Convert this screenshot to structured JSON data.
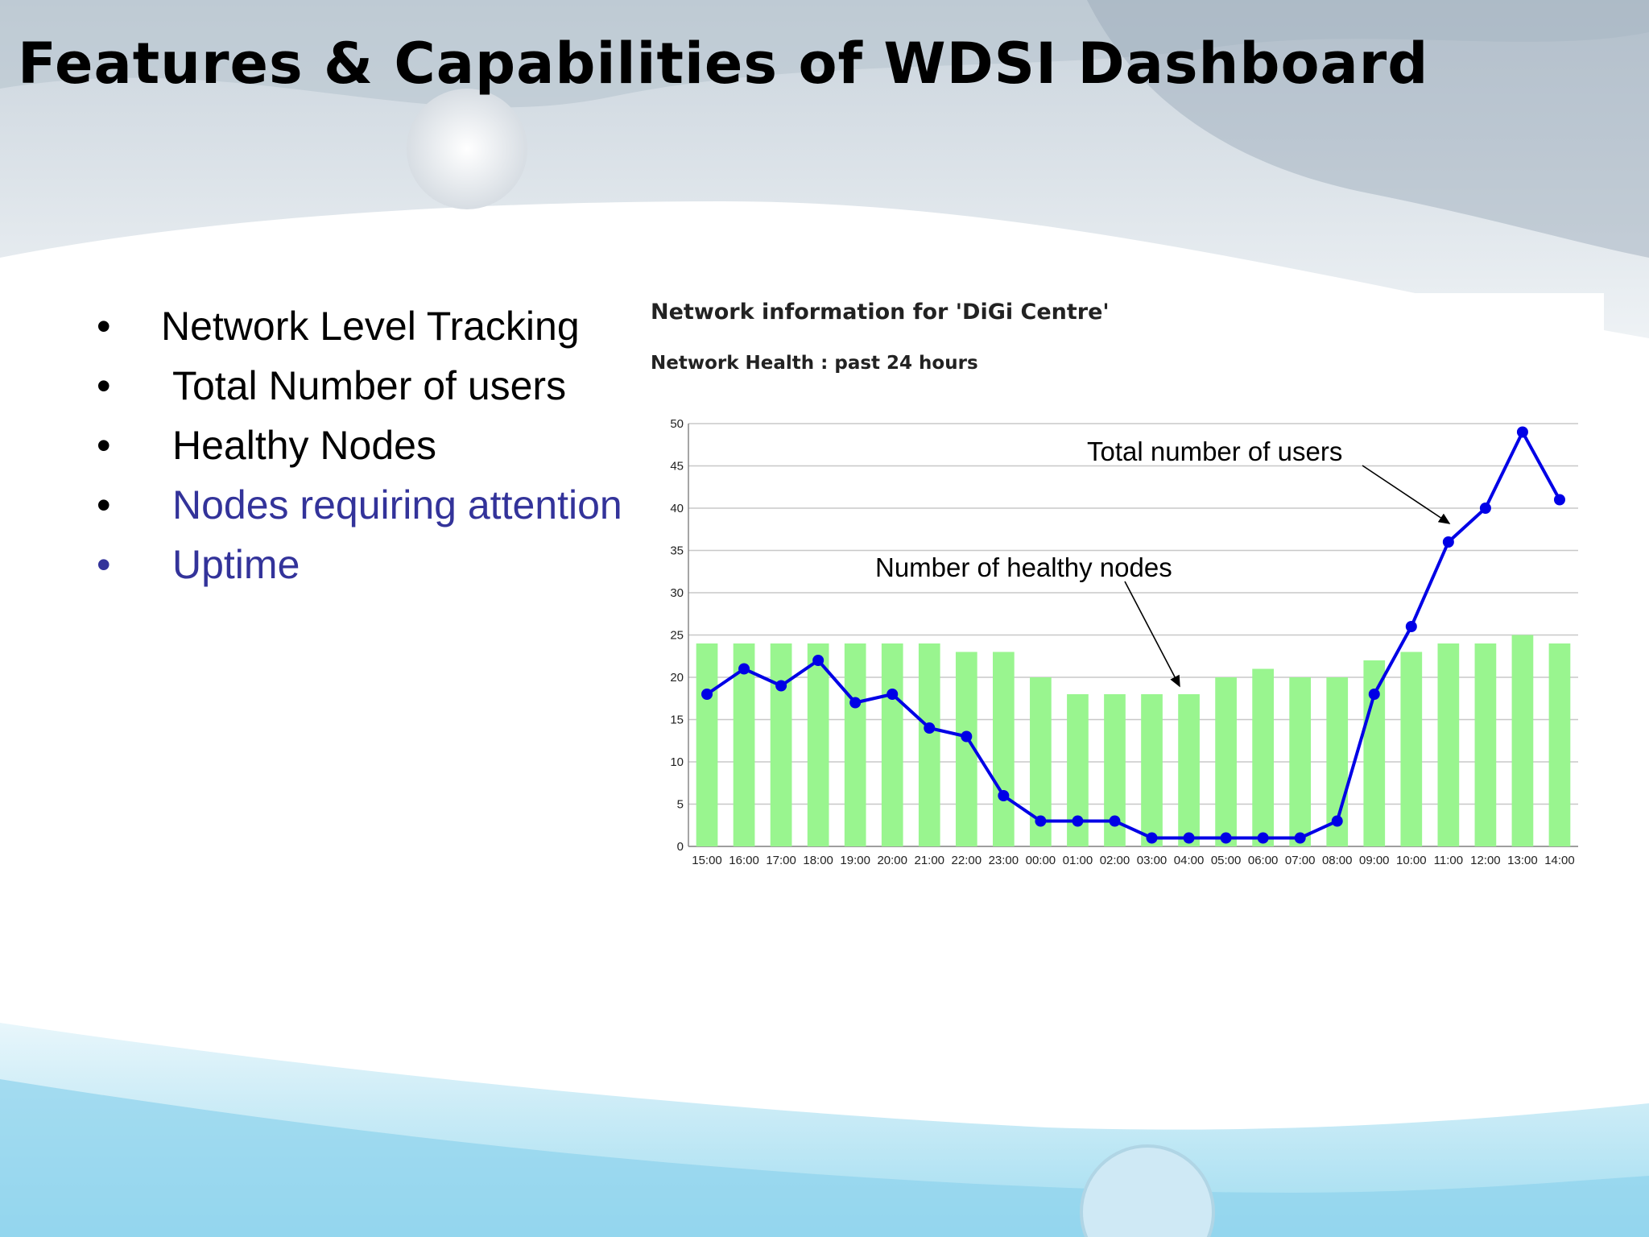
{
  "slide": {
    "title": "Features & Capabilities of WDSI Dashboard",
    "bullets": [
      {
        "text": "Network Level Tracking",
        "color": "#000000"
      },
      {
        "text": "Total Number of users",
        "color": "#000000"
      },
      {
        "text": "Healthy Nodes",
        "color": "#000000"
      },
      {
        "text": "Nodes requiring attention",
        "color": "#33339a"
      },
      {
        "text": "Uptime",
        "color": "#33339a"
      }
    ],
    "bullet_symbol": "•"
  },
  "panel": {
    "header": "Network information for 'DiGi Centre'",
    "subheader": "Network Health : past 24 hours"
  },
  "chart_data": {
    "type": "bar",
    "categories": [
      "15:00",
      "16:00",
      "17:00",
      "18:00",
      "19:00",
      "20:00",
      "21:00",
      "22:00",
      "23:00",
      "00:00",
      "01:00",
      "02:00",
      "03:00",
      "04:00",
      "05:00",
      "06:00",
      "07:00",
      "08:00",
      "09:00",
      "10:00",
      "11:00",
      "12:00",
      "13:00",
      "14:00"
    ],
    "series": [
      {
        "kind": "bar",
        "color": "#99f58f",
        "values": [
          24,
          24,
          24,
          24,
          24,
          24,
          24,
          23,
          23,
          20,
          18,
          18,
          18,
          18,
          20,
          21,
          20,
          20,
          22,
          23,
          24,
          24,
          25,
          24
        ]
      },
      {
        "kind": "line",
        "color": "#0000e6",
        "values": [
          18,
          21,
          19,
          22,
          17,
          18,
          14,
          13,
          6,
          3,
          3,
          3,
          1,
          1,
          1,
          1,
          1,
          3,
          18,
          26,
          36,
          40,
          49,
          41
        ]
      }
    ],
    "ylim": [
      0,
      50
    ],
    "yticks": [
      0,
      5,
      10,
      15,
      20,
      25,
      30,
      35,
      40,
      45,
      50
    ],
    "grid": true,
    "annotations": [
      {
        "text": "Total number of users"
      },
      {
        "text": "Number of healthy nodes"
      }
    ]
  }
}
